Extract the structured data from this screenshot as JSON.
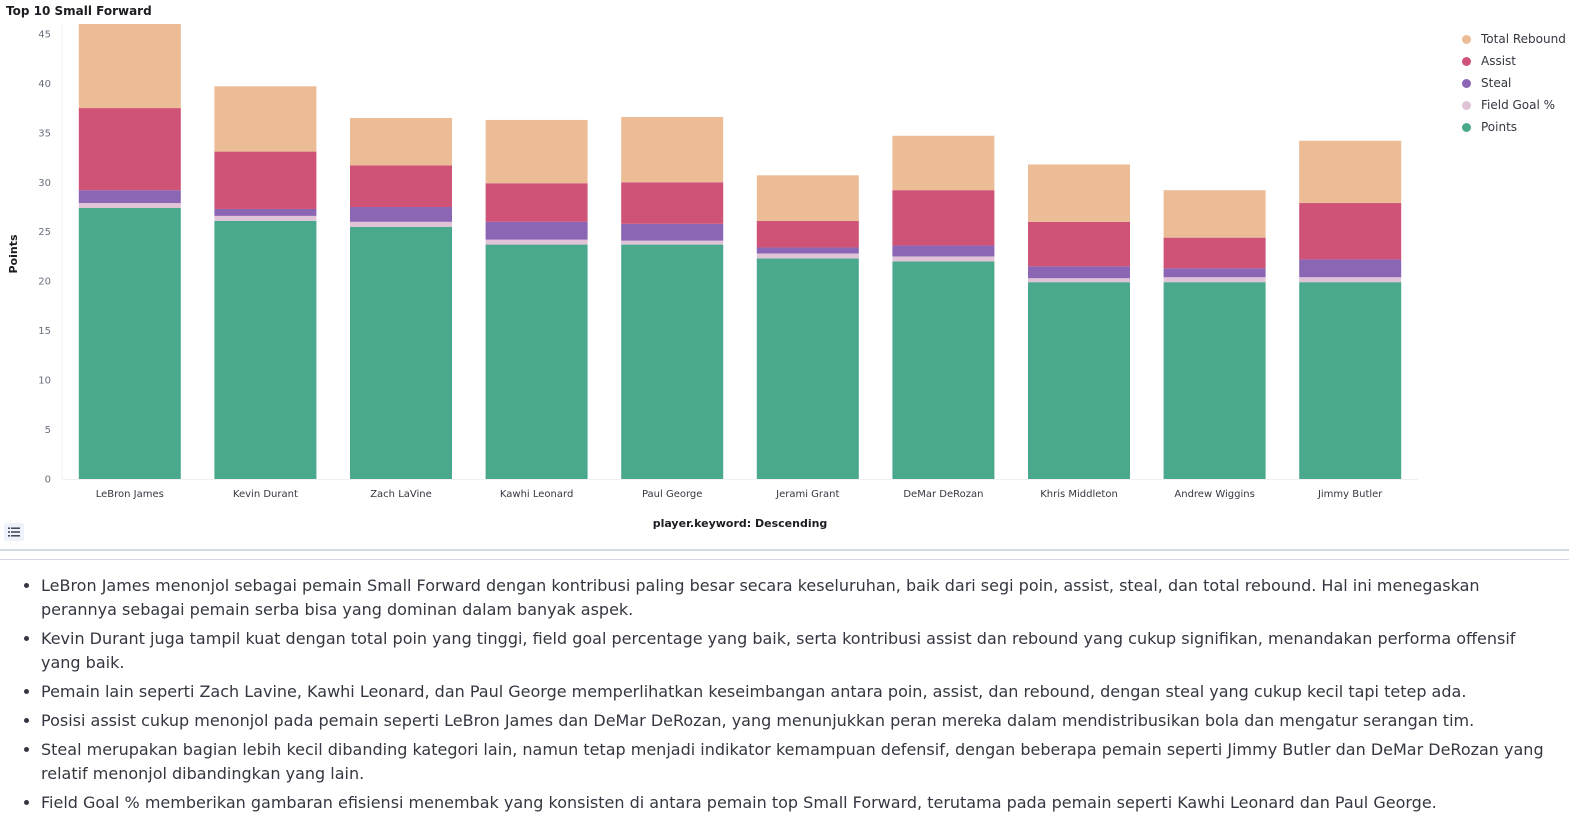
{
  "chart_title": "Top 10 Small Forward",
  "chart_data": {
    "type": "bar",
    "stacked": true,
    "title": "Top 10 Small Forward",
    "xlabel": "player.keyword: Descending",
    "ylabel": "Points",
    "ylim": [
      0,
      46
    ],
    "yticks": [
      0,
      5,
      10,
      15,
      20,
      25,
      30,
      35,
      40,
      45
    ],
    "grid": false,
    "legend_position": "top-right",
    "categories": [
      "LeBron James",
      "Kevin Durant",
      "Zach LaVine",
      "Kawhi Leonard",
      "Paul George",
      "Jerami Grant",
      "DeMar DeRozan",
      "Khris Middleton",
      "Andrew Wiggins",
      "Jimmy Butler"
    ],
    "series": [
      {
        "name": "Points",
        "color": "#4aa98c",
        "values": [
          27.4,
          26.1,
          25.5,
          23.7,
          23.7,
          22.3,
          22.0,
          19.9,
          19.9,
          19.9
        ]
      },
      {
        "name": "Field Goal %",
        "color": "#e1c3d8",
        "values": [
          0.5,
          0.5,
          0.5,
          0.5,
          0.4,
          0.5,
          0.5,
          0.4,
          0.5,
          0.5
        ]
      },
      {
        "name": "Steal",
        "color": "#8a66b5",
        "values": [
          1.3,
          0.7,
          1.5,
          1.8,
          1.7,
          0.6,
          1.1,
          1.2,
          0.9,
          1.8
        ]
      },
      {
        "name": "Assist",
        "color": "#cf5377",
        "values": [
          8.3,
          5.8,
          4.2,
          3.9,
          4.2,
          2.7,
          5.6,
          4.5,
          3.1,
          5.7
        ]
      },
      {
        "name": "Total Rebound",
        "color": "#ebbc96",
        "values": [
          8.5,
          6.6,
          4.8,
          6.4,
          6.6,
          4.6,
          5.5,
          5.8,
          4.8,
          6.3
        ]
      }
    ]
  },
  "legend_items": [
    {
      "label": "Total Rebound",
      "color": "#ebbc96"
    },
    {
      "label": "Assist",
      "color": "#cf5377"
    },
    {
      "label": "Steal",
      "color": "#8a66b5"
    },
    {
      "label": "Field Goal %",
      "color": "#e1c3d8"
    },
    {
      "label": "Points",
      "color": "#4aa98c"
    }
  ],
  "notes": [
    "LeBron James menonjol sebagai pemain Small Forward dengan kontribusi paling besar secara keseluruhan, baik dari segi poin, assist, steal, dan total rebound. Hal ini menegaskan perannya sebagai pemain serba bisa yang dominan dalam banyak aspek.",
    "Kevin Durant juga tampil kuat dengan total poin yang tinggi, field goal percentage yang baik, serta kontribusi assist dan rebound yang cukup signifikan, menandakan performa offensif yang baik.",
    "Pemain lain seperti Zach Lavine, Kawhi Leonard, dan Paul George memperlihatkan keseimbangan antara poin, assist, dan rebound, dengan steal yang cukup kecil tapi tetep ada.",
    "Posisi assist cukup menonjol pada pemain seperti LeBron James dan DeMar DeRozan, yang menunjukkan peran mereka dalam mendistribusikan bola dan mengatur serangan tim.",
    "Steal merupakan bagian lebih kecil dibanding kategori lain, namun tetap menjadi indikator kemampuan defensif, dengan beberapa pemain seperti Jimmy Butler dan DeMar DeRozan yang relatif menonjol dibandingkan yang lain.",
    "Field Goal % memberikan gambaran efisiensi menembak yang konsisten di antara pemain top Small Forward, terutama pada pemain seperti Kawhi Leonard dan Paul George."
  ]
}
